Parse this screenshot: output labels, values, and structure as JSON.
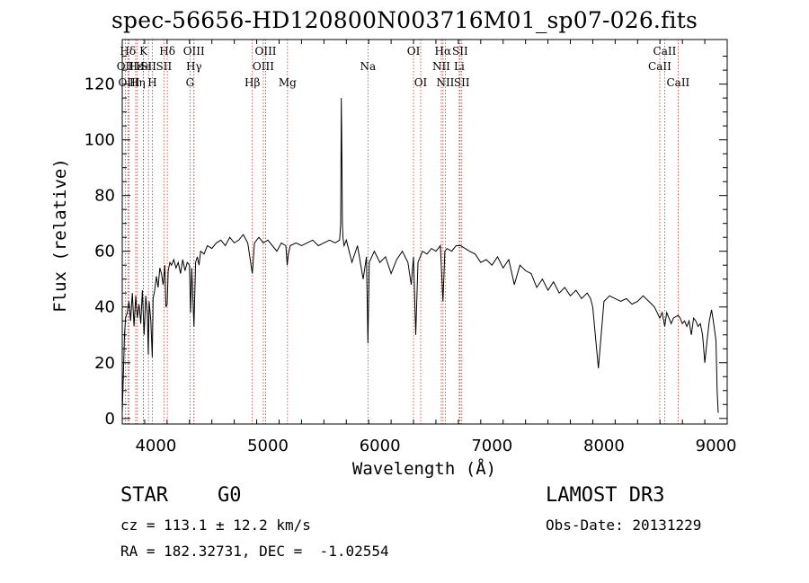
{
  "title": "spec-56656-HD120800N003716M01_sp07-026.fits",
  "info": {
    "class": "STAR",
    "subclass": "G0",
    "survey": "LAMOST DR3",
    "cz": "cz = 113.1 ± 12.2 km/s",
    "obs_date": "Obs-Date: 20131229",
    "radec": "RA = 182.32731, DEC =  -1.02554"
  },
  "chart_data": {
    "type": "line",
    "title": "spec-56656-HD120800N003716M01_sp07-026.fits",
    "xlabel": "Wavelength (Å)",
    "ylabel": "Flux (relative)",
    "xlim": [
      3700,
      9100
    ],
    "ylim": [
      -2,
      136
    ],
    "xticks": [
      4000,
      5000,
      6000,
      7000,
      8000,
      9000
    ],
    "yticks": [
      0,
      20,
      40,
      60,
      80,
      100,
      120
    ],
    "series": [
      {
        "name": "spectrum",
        "x": [
          3700,
          3710,
          3720,
          3730,
          3745,
          3760,
          3775,
          3790,
          3805,
          3820,
          3835,
          3850,
          3865,
          3880,
          3895,
          3910,
          3925,
          3933,
          3940,
          3955,
          3968,
          3975,
          3990,
          4005,
          4020,
          4035,
          4050,
          4065,
          4080,
          4090,
          4101,
          4110,
          4125,
          4140,
          4160,
          4180,
          4200,
          4220,
          4240,
          4260,
          4280,
          4300,
          4310,
          4320,
          4340,
          4355,
          4370,
          4385,
          4400,
          4430,
          4460,
          4500,
          4540,
          4580,
          4620,
          4660,
          4700,
          4740,
          4780,
          4820,
          4861,
          4880,
          4920,
          4960,
          5000,
          5040,
          5080,
          5120,
          5160,
          5172,
          5183,
          5200,
          5250,
          5300,
          5350,
          5400,
          5450,
          5500,
          5550,
          5600,
          5640,
          5650,
          5655,
          5660,
          5665,
          5670,
          5680,
          5700,
          5750,
          5800,
          5850,
          5880,
          5893,
          5905,
          5950,
          6000,
          6050,
          6100,
          6150,
          6200,
          6250,
          6280,
          6300,
          6320,
          6340,
          6380,
          6420,
          6460,
          6500,
          6540,
          6563,
          6580,
          6600,
          6640,
          6680,
          6720,
          6760,
          6800,
          6850,
          6900,
          6950,
          7000,
          7050,
          7100,
          7150,
          7200,
          7250,
          7300,
          7350,
          7400,
          7450,
          7500,
          7550,
          7600,
          7650,
          7700,
          7750,
          7800,
          7850,
          7880,
          7900,
          7950,
          8000,
          8050,
          8100,
          8150,
          8200,
          8250,
          8300,
          8350,
          8400,
          8450,
          8498,
          8520,
          8542,
          8560,
          8600,
          8620,
          8662,
          8680,
          8700,
          8720,
          8740,
          8760,
          8780,
          8800,
          8820,
          8840,
          8860,
          8880,
          8900,
          8920,
          8940,
          8960,
          8980,
          9000,
          9010,
          9020
        ],
        "values": [
          2,
          15,
          30,
          36,
          38,
          42,
          35,
          45,
          33,
          44,
          36,
          41,
          34,
          46,
          30,
          44,
          37,
          23,
          42,
          35,
          22,
          43,
          46,
          51,
          47,
          54,
          52,
          48,
          55,
          40,
          41,
          53,
          56,
          55,
          57,
          54,
          56,
          52,
          57,
          53,
          56,
          55,
          38,
          54,
          33,
          56,
          58,
          55,
          60,
          59,
          62,
          61,
          63,
          64,
          62,
          65,
          63,
          64,
          66,
          63,
          52,
          63,
          65,
          63,
          64,
          62,
          60,
          63,
          62,
          55,
          59,
          62,
          63,
          62,
          63,
          64,
          62,
          63,
          64,
          63,
          64,
          70,
          115,
          95,
          70,
          65,
          62,
          64,
          56,
          62,
          50,
          58,
          27,
          56,
          60,
          56,
          58,
          52,
          57,
          60,
          56,
          48,
          58,
          30,
          56,
          60,
          59,
          61,
          60,
          62,
          42,
          60,
          61,
          60,
          62,
          62,
          61,
          60,
          59,
          56,
          57,
          55,
          58,
          54,
          57,
          48,
          55,
          53,
          52,
          47,
          50,
          46,
          49,
          45,
          47,
          44,
          46,
          43,
          45,
          43,
          40,
          18,
          42,
          44,
          43,
          42,
          43,
          41,
          42,
          44,
          42,
          40,
          36,
          38,
          33,
          38,
          34,
          36,
          37,
          36,
          34,
          35,
          33,
          35,
          30,
          36,
          35,
          33,
          34,
          30,
          20,
          28,
          35,
          39,
          34,
          28,
          10,
          2
        ]
      }
    ],
    "lines": [
      {
        "label": "Hδ",
        "wavelength": 3750,
        "row": 0
      },
      {
        "label": "OII",
        "wavelength": 3727,
        "row": 1
      },
      {
        "label": "OIII",
        "wavelength": 3760,
        "row": 2
      },
      {
        "label": "Hε",
        "wavelength": 3820,
        "row": 1
      },
      {
        "label": "Hη",
        "wavelength": 3835,
        "row": 2
      },
      {
        "label": "K",
        "wavelength": 3889,
        "row": 0
      },
      {
        "label": "He",
        "wavelength": 3889,
        "row": 1
      },
      {
        "label": "SII",
        "wavelength": 3934,
        "row": 1
      },
      {
        "label": "H",
        "wavelength": 3969,
        "row": 2
      },
      {
        "label": "Hδ",
        "wavelength": 4102,
        "row": 0
      },
      {
        "label": "SII",
        "wavelength": 4072,
        "row": 1
      },
      {
        "label": "OIII",
        "wavelength": 4340,
        "row": 0
      },
      {
        "label": "Hγ",
        "wavelength": 4340,
        "row": 1
      },
      {
        "label": "G",
        "wavelength": 4305,
        "row": 2
      },
      {
        "label": "Hβ",
        "wavelength": 4861,
        "row": 2
      },
      {
        "label": "OIII",
        "wavelength": 4980,
        "row": 0
      },
      {
        "label": "OIII",
        "wavelength": 4959,
        "row": 1
      },
      {
        "label": "Mg",
        "wavelength": 5175,
        "row": 2
      },
      {
        "label": "Na",
        "wavelength": 5893,
        "row": 1
      },
      {
        "label": "OI",
        "wavelength": 6300,
        "row": 0
      },
      {
        "label": "OI",
        "wavelength": 6364,
        "row": 2
      },
      {
        "label": "Hα",
        "wavelength": 6563,
        "row": 0
      },
      {
        "label": "SII",
        "wavelength": 6716,
        "row": 0
      },
      {
        "label": "NII",
        "wavelength": 6548,
        "row": 1
      },
      {
        "label": "Li",
        "wavelength": 6708,
        "row": 1
      },
      {
        "label": "NII",
        "wavelength": 6584,
        "row": 2
      },
      {
        "label": "SII",
        "wavelength": 6731,
        "row": 2
      },
      {
        "label": "CaII",
        "wavelength": 8542,
        "row": 0
      },
      {
        "label": "CaII",
        "wavelength": 8498,
        "row": 1
      },
      {
        "label": "CaII",
        "wavelength": 8662,
        "row": 2
      }
    ]
  }
}
